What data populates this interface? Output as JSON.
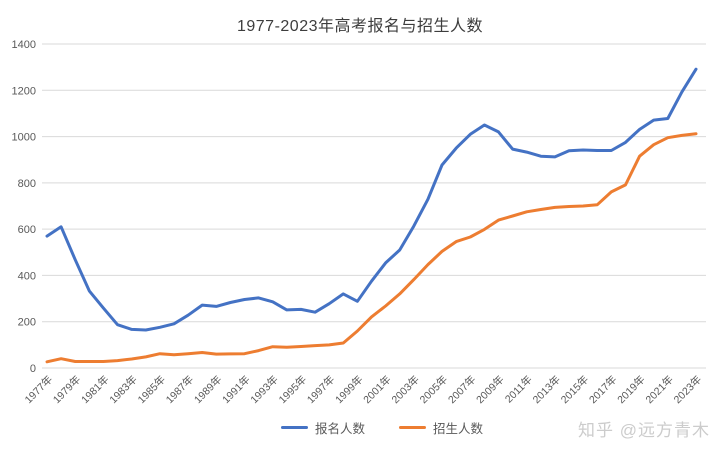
{
  "watermark": {
    "text": "知乎 @远方青木"
  },
  "chart_data": {
    "type": "line",
    "title": "1977-2023年高考报名与招生人数",
    "year_start": 1977,
    "year_end": 2023,
    "x_tick_labels": [
      "1977年",
      "1979年",
      "1981年",
      "1983年",
      "1985年",
      "1987年",
      "1989年",
      "1991年",
      "1993年",
      "1995年",
      "1997年",
      "1999年",
      "2001年",
      "2003年",
      "2005年",
      "2007年",
      "2009年",
      "2011年",
      "2013年",
      "2015年",
      "2017年",
      "2019年",
      "2021年",
      "2023年"
    ],
    "x_tick_interval_years": 2,
    "ylim": [
      0,
      1400
    ],
    "ytick_step": 200,
    "grid": true,
    "legend_position": "bottom",
    "colors": {
      "grid": "#d9d9d9",
      "axis_text": "#595959",
      "title_text": "#3d3d3d",
      "watermark_text": "#cccccc"
    },
    "series": [
      {
        "name": "报名人数",
        "color": "#4472C4",
        "values": [
          570,
          610,
          468,
          333,
          259,
          187,
          167,
          164,
          176,
          191,
          228,
          272,
          266,
          283,
          296,
          303,
          286,
          251,
          253,
          241,
          278,
          320,
          288,
          375,
          454,
          510,
          613,
          729,
          877,
          950,
          1010,
          1050,
          1020,
          946,
          933,
          915,
          912,
          939,
          942,
          940,
          940,
          975,
          1031,
          1071,
          1078,
          1193,
          1291
        ]
      },
      {
        "name": "招生人数",
        "color": "#ED7D31",
        "values": [
          27,
          40,
          28,
          28,
          28,
          32,
          39,
          48,
          62,
          57,
          62,
          67,
          60,
          61,
          62,
          75,
          92,
          90,
          93,
          97,
          100,
          108,
          160,
          221,
          268,
          320,
          382,
          447,
          504,
          546,
          566,
          599,
          639,
          657,
          675,
          685,
          694,
          698,
          700,
          705,
          761,
          791,
          915,
          965,
          995,
          1005,
          1012
        ]
      }
    ]
  }
}
